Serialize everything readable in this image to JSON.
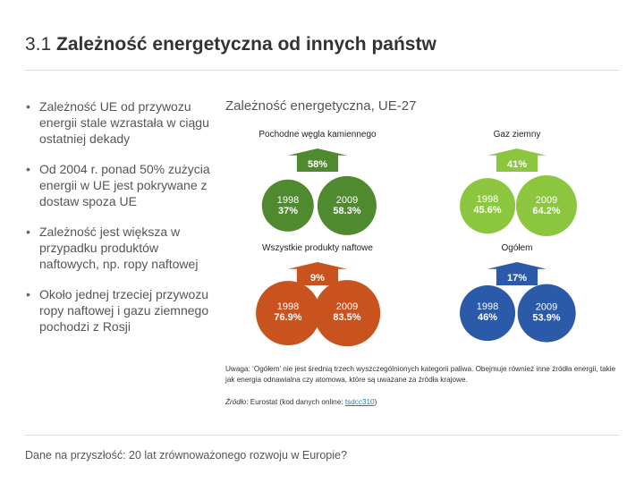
{
  "title": {
    "prefix": "3.1 ",
    "main": "Zależność energetyczna od innych państw"
  },
  "bullets": [
    "Zależność UE od przywozu energii stale wzrastała w ciągu ostatniej dekady",
    "Od 2004 r. ponad 50% zużycia energii w UE jest pokrywane z dostaw spoza UE",
    "Zależność jest większa w przypadku produktów naftowych, np. ropy naftowej",
    "Około jednej trzeciej przywozu ropy naftowej i gazu ziemnego pochodzi z Rosji"
  ],
  "chart_title": "Zależność energetyczna, UE-27",
  "chart_data": {
    "type": "bubble",
    "years": [
      "1998",
      "2009"
    ],
    "groups": [
      {
        "name": "Pochodne węgla kamiennego",
        "change": "58%",
        "values": [
          37,
          58.3
        ],
        "value_labels": [
          "37%",
          "58.3%"
        ],
        "color": "#4f8a2e"
      },
      {
        "name": "Gaz ziemny",
        "change": "41%",
        "values": [
          45.6,
          64.2
        ],
        "value_labels": [
          "45.6%",
          "64.2%"
        ],
        "color": "#8cc63f"
      },
      {
        "name": "Wszystkie produkty naftowe",
        "change": "9%",
        "values": [
          76.9,
          83.5
        ],
        "value_labels": [
          "76.9%",
          "83.5%"
        ],
        "color": "#c8531f"
      },
      {
        "name": "Ogółem",
        "change": "17%",
        "values": [
          46,
          53.9
        ],
        "value_labels": [
          "46%",
          "53.9%"
        ],
        "color": "#2b5aa8"
      }
    ]
  },
  "note": "Uwaga: ‘Ogółem’ nie jest średnią trzech wyszczególnionych kategorii paliwa. Obejmuje również inne źródła energii, takie jak energia odnawialna czy atomowa, które są uważane za źródła krajowe.",
  "source": {
    "label": "Źródło",
    "text": ": Eurostat (kod danych online: ",
    "link": "tsdcc310",
    "end": ")"
  },
  "footer": "Dane na przyszłość: 20 lat zrównoważonego rozwoju w Europie?"
}
